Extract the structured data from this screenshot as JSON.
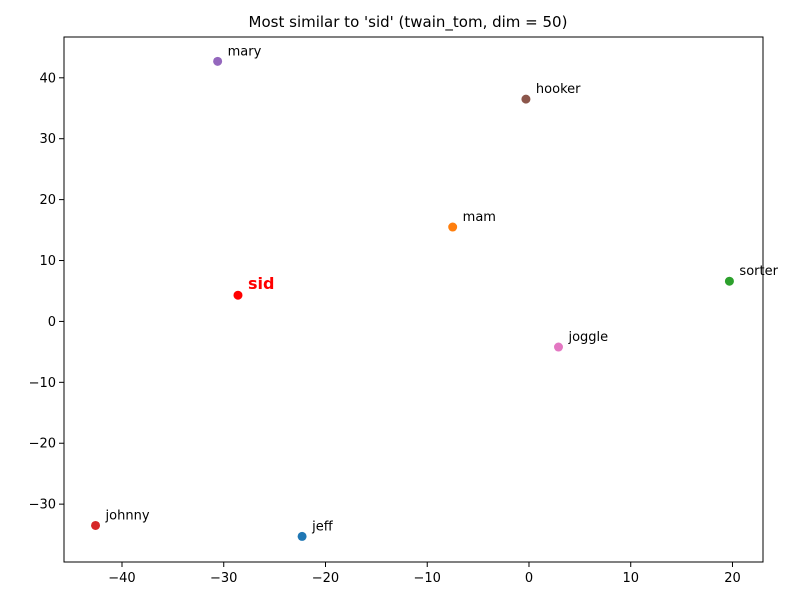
{
  "chart_data": {
    "type": "scatter",
    "title": "Most similar to 'sid' (twain_tom, dim = 50)",
    "xlabel": "",
    "ylabel": "",
    "xlim": [
      -45.7,
      23.0
    ],
    "ylim": [
      -39.5,
      46.7
    ],
    "xticks": [
      -40,
      -30,
      -20,
      -10,
      0,
      10,
      20
    ],
    "yticks": [
      -30,
      -20,
      -10,
      0,
      10,
      20,
      30,
      40
    ],
    "xtick_labels": [
      "−40",
      "−30",
      "−20",
      "−10",
      "0",
      "10",
      "20"
    ],
    "ytick_labels": [
      "−30",
      "−20",
      "−10",
      "0",
      "10",
      "20",
      "30",
      "40"
    ],
    "grid": false,
    "points": [
      {
        "label": "sid",
        "x": -28.6,
        "y": 4.3,
        "color": "#ff0000",
        "highlight": true
      },
      {
        "label": "jeff",
        "x": -22.3,
        "y": -35.3,
        "color": "#1f77b4"
      },
      {
        "label": "mam",
        "x": -7.5,
        "y": 15.5,
        "color": "#ff7f0e"
      },
      {
        "label": "sorter",
        "x": 19.7,
        "y": 6.6,
        "color": "#2ca02c"
      },
      {
        "label": "johnny",
        "x": -42.6,
        "y": -33.5,
        "color": "#d62728"
      },
      {
        "label": "mary",
        "x": -30.6,
        "y": 42.7,
        "color": "#9467bd"
      },
      {
        "label": "hooker",
        "x": -0.3,
        "y": 36.5,
        "color": "#8c564b"
      },
      {
        "label": "joggle",
        "x": 2.9,
        "y": -4.2,
        "color": "#e377c2"
      }
    ]
  }
}
